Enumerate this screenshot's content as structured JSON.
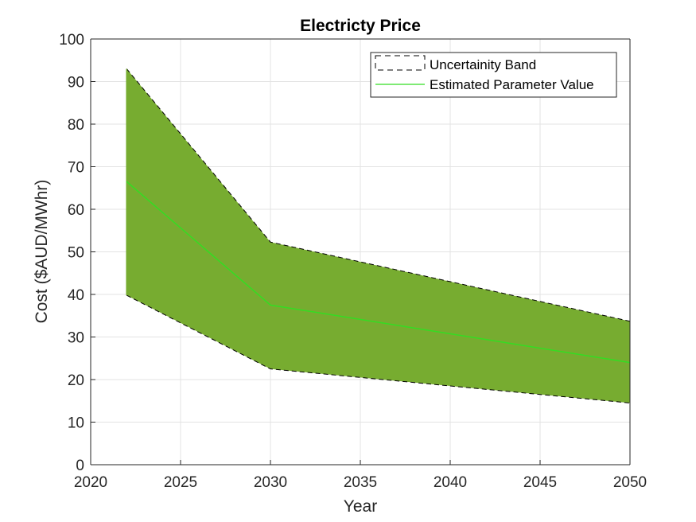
{
  "chart_data": {
    "type": "area",
    "title": "Electricty Price",
    "xlabel": "Year",
    "ylabel": "Cost ($AUD/MWhr)",
    "xlim": [
      2020,
      2050
    ],
    "ylim": [
      0,
      100
    ],
    "xticks": [
      2020,
      2025,
      2030,
      2035,
      2040,
      2045,
      2050
    ],
    "yticks": [
      0,
      10,
      20,
      30,
      40,
      50,
      60,
      70,
      80,
      90,
      100
    ],
    "grid": true,
    "legend_position": "top-right",
    "x": [
      2022,
      2030,
      2050
    ],
    "series": [
      {
        "name": "Uncertainity Band",
        "lower": [
          39.8,
          22.5,
          14.5
        ],
        "upper": [
          93,
          52.3,
          33.7
        ]
      },
      {
        "name": "Estimated Parameter Value",
        "values": [
          66.5,
          37.5,
          24
        ]
      }
    ],
    "colors": {
      "band_fill": "#77ac30",
      "band_edge": "#000000",
      "estimate_line": "#33dd22",
      "grid": "#e3e3e3",
      "axis": "#262626"
    }
  }
}
